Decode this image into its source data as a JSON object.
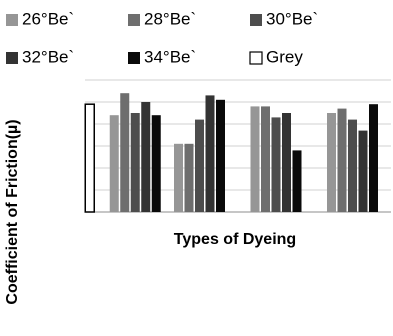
{
  "chart_data": {
    "type": "bar",
    "x_label": "Types of Dyeing",
    "y_label": "Coefficient of Friction(µ)",
    "categories": [
      null,
      null,
      null,
      null
    ],
    "series": [
      {
        "name": "26°Be`",
        "color": "#969696",
        "values": [
          4.4,
          3.1,
          4.8,
          4.5
        ]
      },
      {
        "name": "28°Be`",
        "color": "#6e6e6e",
        "values": [
          5.4,
          3.1,
          4.8,
          4.7
        ]
      },
      {
        "name": "30°Be`",
        "color": "#4d4d4d",
        "values": [
          4.5,
          4.2,
          4.3,
          4.2
        ]
      },
      {
        "name": "32°Be`",
        "color": "#333333",
        "values": [
          5.0,
          5.3,
          4.5,
          3.7
        ]
      },
      {
        "name": "34°Be`",
        "color": "#0a0a0a",
        "values": [
          4.4,
          5.1,
          2.8,
          4.9
        ]
      },
      {
        "name": "Grey",
        "color": "#ffffff",
        "values": [
          4.9,
          null,
          null,
          null
        ]
      }
    ],
    "ylim": [
      0,
      6
    ],
    "yticks": [
      0,
      1,
      2,
      3,
      4,
      5,
      6
    ],
    "grid": true
  }
}
